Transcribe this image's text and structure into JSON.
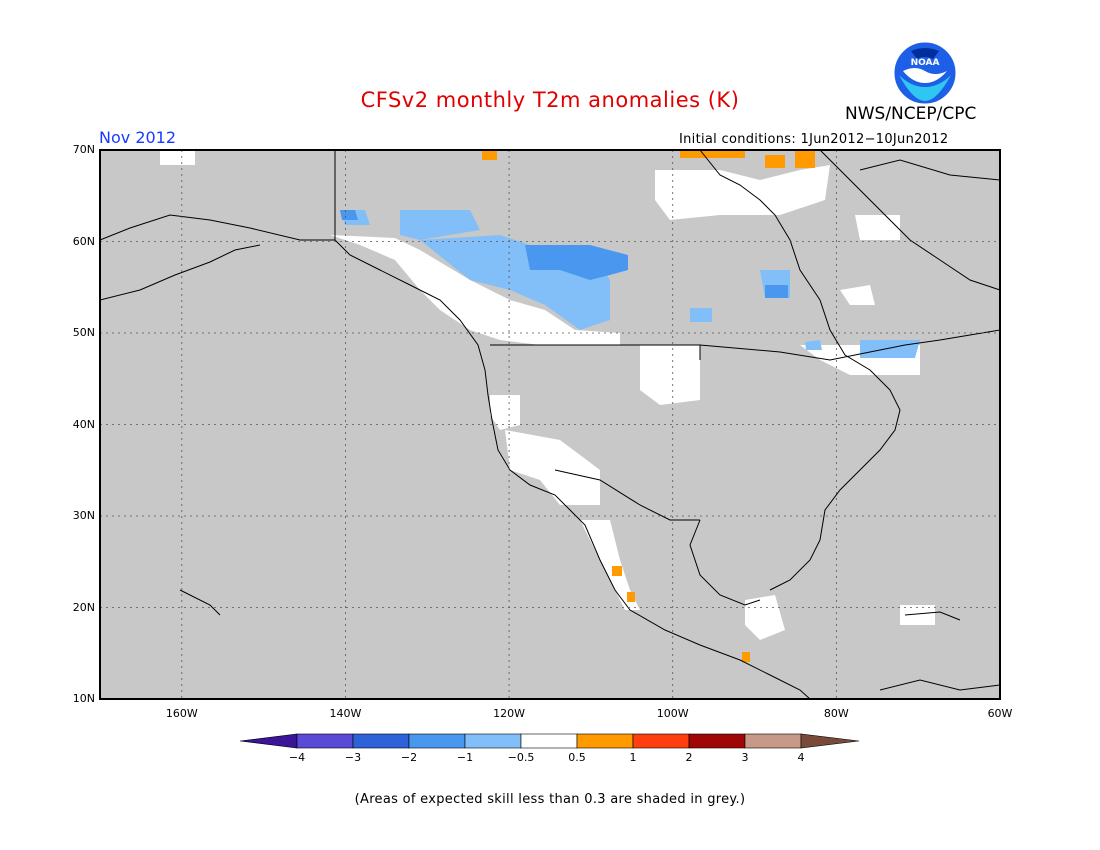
{
  "title": "CFSv2 monthly T2m anomalies (K)",
  "organization": "NWS/NCEP/CPC",
  "logo_text": "NOAA",
  "period": "Nov 2012",
  "initial_conditions": "Initial conditions: 1Jun2012−10Jun2012",
  "footnote": "(Areas of expected skill less than 0.3 are shaded in grey.)",
  "map": {
    "lon_range": [
      -170,
      -60
    ],
    "lat_range": [
      10,
      70
    ],
    "land_color": "#c8c8c8",
    "lat_labels": [
      "70N",
      "60N",
      "50N",
      "40N",
      "30N",
      "20N",
      "10N"
    ],
    "lon_labels": [
      "160W",
      "140W",
      "120W",
      "100W",
      "80W",
      "60W"
    ]
  },
  "colorbar": {
    "tick_labels": [
      "−4",
      "−3",
      "−2",
      "−1",
      "−0.5",
      "0.5",
      "1",
      "2",
      "3",
      "4"
    ],
    "colors": [
      "#3a1599",
      "#5a4bd6",
      "#2f62d8",
      "#4a97f0",
      "#82bff8",
      "#ffffff",
      "#ff9a00",
      "#ff3f0f",
      "#a10606",
      "#c79a88",
      "#7a4a38"
    ]
  },
  "legend_icons": [
    "noaa-logo-icon"
  ]
}
